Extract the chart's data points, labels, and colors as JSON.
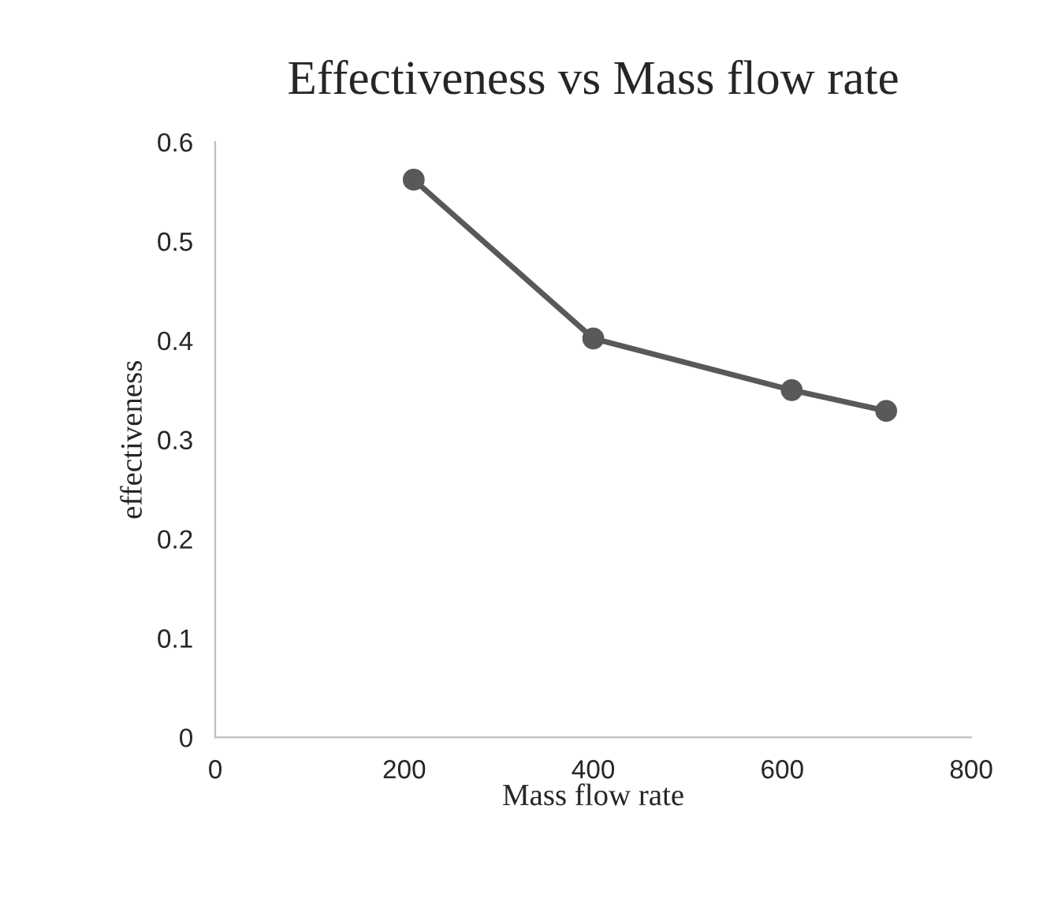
{
  "chart_data": {
    "type": "line",
    "title": "Effectiveness vs Mass flow rate",
    "xlabel": "Mass flow rate",
    "ylabel": "effectiveness",
    "x": [
      210,
      400,
      610,
      710
    ],
    "series": [
      {
        "color": "#595959",
        "values": [
          0.562,
          0.402,
          0.35,
          0.329
        ]
      }
    ],
    "xlim": [
      0,
      800
    ],
    "xticks": [
      0,
      200,
      400,
      600,
      800
    ],
    "ylim": [
      0,
      0.6
    ],
    "yticks": [
      0,
      0.1,
      0.2,
      0.3,
      0.4,
      0.5,
      0.6
    ],
    "grid": false,
    "legend": false,
    "marker": "circle",
    "line_style": "solid"
  }
}
